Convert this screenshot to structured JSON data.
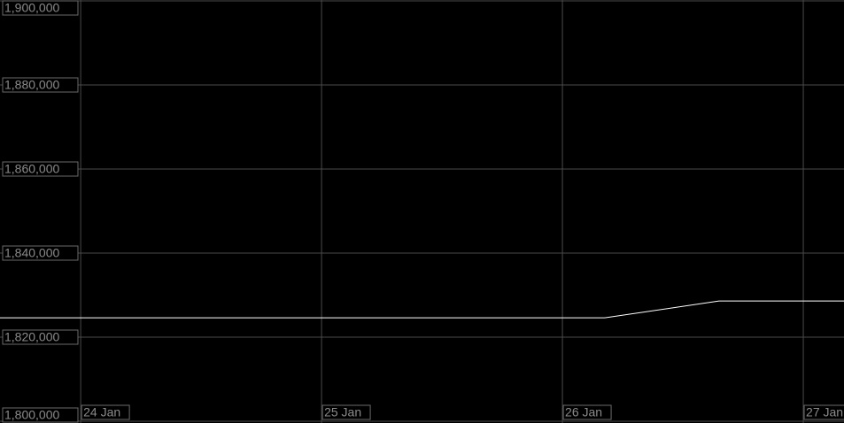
{
  "chart_data": {
    "type": "line",
    "x": [
      23.665,
      26.176,
      26.65,
      27.169
    ],
    "series": [
      {
        "color": "#ffffff",
        "values": [
          1824600,
          1824600,
          1828600,
          1828600
        ]
      }
    ],
    "xlim": [
      23.665,
      27.169
    ],
    "xticks": [
      {
        "value": 24,
        "label": "24 Jan"
      },
      {
        "value": 25,
        "label": "25 Jan"
      },
      {
        "value": 26,
        "label": "26 Jan"
      },
      {
        "value": 27,
        "label": "27 Jan"
      }
    ],
    "ylim": [
      1800000,
      1900000
    ],
    "yticks": [
      {
        "value": 1800000,
        "label": "1,800,000"
      },
      {
        "value": 1820000,
        "label": "1,820,000"
      },
      {
        "value": 1840000,
        "label": "1,840,000"
      },
      {
        "value": 1860000,
        "label": "1,860,000"
      },
      {
        "value": 1880000,
        "label": "1,880,000"
      },
      {
        "value": 1900000,
        "label": "1,900,000"
      }
    ],
    "grid": true
  }
}
